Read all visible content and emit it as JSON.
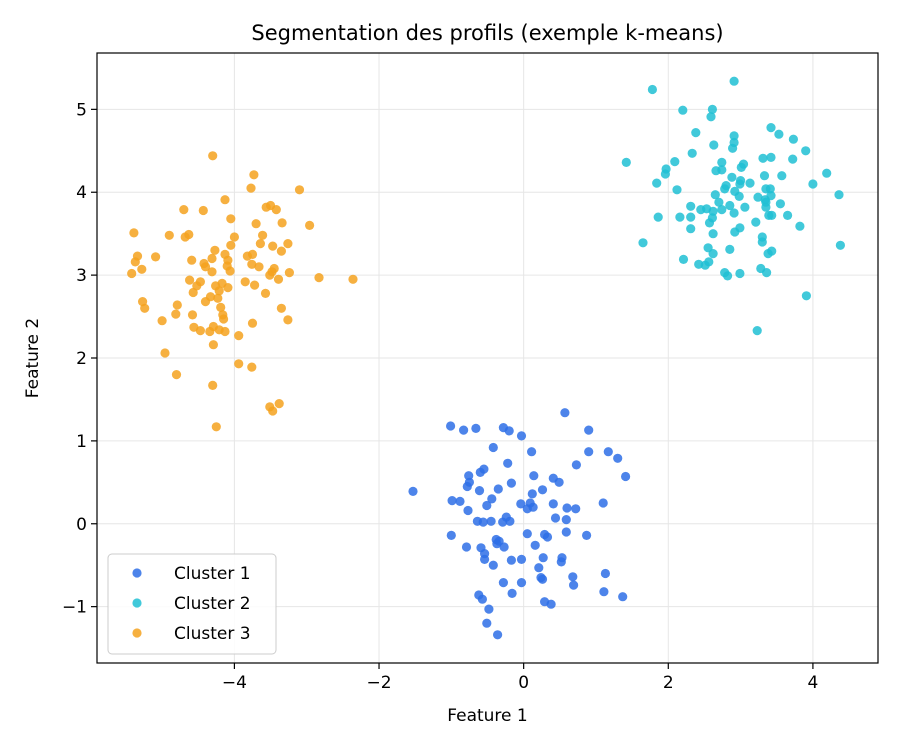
{
  "chart_data": {
    "type": "scatter",
    "title": "Segmentation des profils (exemple k-means)",
    "xlabel": "Feature 1",
    "ylabel": "Feature 2",
    "xlim": [
      -5.9,
      4.9
    ],
    "ylim": [
      -1.68,
      5.68
    ],
    "xticks": [
      {
        "value": -4,
        "label": "−4"
      },
      {
        "value": -2,
        "label": "−2"
      },
      {
        "value": 0,
        "label": "0"
      },
      {
        "value": 2,
        "label": "2"
      },
      {
        "value": 4,
        "label": "4"
      }
    ],
    "yticks": [
      {
        "value": -1,
        "label": "−1"
      },
      {
        "value": 0,
        "label": "0"
      },
      {
        "value": 1,
        "label": "1"
      },
      {
        "value": 2,
        "label": "2"
      },
      {
        "value": 3,
        "label": "3"
      },
      {
        "value": 4,
        "label": "4"
      },
      {
        "value": 5,
        "label": "5"
      }
    ],
    "grid": true,
    "legend_position": "lower-left",
    "series": [
      {
        "name": "Cluster 1",
        "color": "#2e6fe6",
        "points": [
          [
            0.57,
            1.34
          ],
          [
            -1.01,
            1.18
          ],
          [
            -0.66,
            1.15
          ],
          [
            -0.28,
            1.16
          ],
          [
            -0.2,
            1.12
          ],
          [
            0.9,
            1.13
          ],
          [
            -0.83,
            1.13
          ],
          [
            -0.03,
            1.06
          ],
          [
            -0.42,
            0.92
          ],
          [
            0.11,
            0.87
          ],
          [
            0.9,
            0.87
          ],
          [
            1.17,
            0.87
          ],
          [
            1.3,
            0.79
          ],
          [
            0.73,
            0.71
          ],
          [
            -0.22,
            0.73
          ],
          [
            -0.55,
            0.66
          ],
          [
            -0.6,
            0.62
          ],
          [
            0.14,
            0.58
          ],
          [
            1.41,
            0.57
          ],
          [
            -0.76,
            0.58
          ],
          [
            -0.75,
            0.5
          ],
          [
            0.41,
            0.55
          ],
          [
            -0.78,
            0.45
          ],
          [
            0.49,
            0.5
          ],
          [
            -0.35,
            0.42
          ],
          [
            -0.61,
            0.4
          ],
          [
            0.26,
            0.41
          ],
          [
            -0.17,
            0.49
          ],
          [
            -1.53,
            0.39
          ],
          [
            0.12,
            0.36
          ],
          [
            -0.44,
            0.3
          ],
          [
            -0.51,
            0.22
          ],
          [
            -0.99,
            0.28
          ],
          [
            -0.88,
            0.27
          ],
          [
            0.09,
            0.25
          ],
          [
            -0.04,
            0.24
          ],
          [
            1.1,
            0.25
          ],
          [
            0.41,
            0.24
          ],
          [
            0.13,
            0.2
          ],
          [
            0.6,
            0.19
          ],
          [
            0.72,
            0.18
          ],
          [
            0.05,
            0.18
          ],
          [
            -0.77,
            0.16
          ],
          [
            -0.24,
            0.08
          ],
          [
            -0.29,
            0.02
          ],
          [
            0.44,
            0.07
          ],
          [
            0.59,
            0.05
          ],
          [
            -0.45,
            0.03
          ],
          [
            -0.64,
            0.03
          ],
          [
            -0.56,
            0.02
          ],
          [
            -0.19,
            0.03
          ],
          [
            0.87,
            -0.14
          ],
          [
            0.05,
            -0.12
          ],
          [
            0.29,
            -0.13
          ],
          [
            0.59,
            -0.1
          ],
          [
            0.33,
            -0.16
          ],
          [
            -1.0,
            -0.14
          ],
          [
            -0.38,
            -0.19
          ],
          [
            -0.37,
            -0.24
          ],
          [
            -0.34,
            -0.21
          ],
          [
            0.16,
            -0.26
          ],
          [
            -0.27,
            -0.28
          ],
          [
            -0.79,
            -0.28
          ],
          [
            -0.59,
            -0.29
          ],
          [
            -0.54,
            -0.36
          ],
          [
            0.27,
            -0.41
          ],
          [
            -0.03,
            -0.43
          ],
          [
            0.53,
            -0.41
          ],
          [
            -0.54,
            -0.43
          ],
          [
            -0.17,
            -0.44
          ],
          [
            0.52,
            -0.46
          ],
          [
            -0.42,
            -0.5
          ],
          [
            0.21,
            -0.53
          ],
          [
            1.13,
            -0.6
          ],
          [
            0.24,
            -0.65
          ],
          [
            0.68,
            -0.64
          ],
          [
            0.26,
            -0.67
          ],
          [
            -0.28,
            -0.71
          ],
          [
            -0.03,
            -0.71
          ],
          [
            1.11,
            -0.82
          ],
          [
            0.69,
            -0.74
          ],
          [
            1.37,
            -0.88
          ],
          [
            -0.62,
            -0.86
          ],
          [
            -0.16,
            -0.84
          ],
          [
            0.29,
            -0.94
          ],
          [
            -0.57,
            -0.91
          ],
          [
            0.38,
            -0.97
          ],
          [
            -0.48,
            -1.03
          ],
          [
            -0.51,
            -1.2
          ],
          [
            -0.36,
            -1.34
          ]
        ]
      },
      {
        "name": "Cluster 2",
        "color": "#20bfd3",
        "points": [
          [
            2.91,
            5.34
          ],
          [
            1.78,
            5.24
          ],
          [
            2.2,
            4.99
          ],
          [
            2.61,
            5.0
          ],
          [
            2.59,
            4.91
          ],
          [
            3.42,
            4.78
          ],
          [
            3.53,
            4.7
          ],
          [
            2.38,
            4.72
          ],
          [
            2.91,
            4.68
          ],
          [
            3.73,
            4.64
          ],
          [
            2.63,
            4.57
          ],
          [
            2.91,
            4.6
          ],
          [
            2.89,
            4.53
          ],
          [
            3.31,
            4.41
          ],
          [
            3.9,
            4.5
          ],
          [
            2.33,
            4.47
          ],
          [
            3.42,
            4.42
          ],
          [
            3.72,
            4.4
          ],
          [
            3.04,
            4.34
          ],
          [
            1.42,
            4.36
          ],
          [
            2.09,
            4.37
          ],
          [
            2.74,
            4.36
          ],
          [
            3.01,
            4.3
          ],
          [
            1.97,
            4.28
          ],
          [
            2.74,
            4.27
          ],
          [
            2.66,
            4.26
          ],
          [
            3.33,
            4.2
          ],
          [
            3.57,
            4.2
          ],
          [
            4.19,
            4.23
          ],
          [
            2.88,
            4.18
          ],
          [
            3.0,
            4.14
          ],
          [
            1.96,
            4.22
          ],
          [
            2.99,
            4.1
          ],
          [
            3.41,
            4.04
          ],
          [
            1.84,
            4.11
          ],
          [
            2.8,
            4.08
          ],
          [
            2.78,
            4.04
          ],
          [
            3.13,
            4.11
          ],
          [
            4.0,
            4.1
          ],
          [
            2.92,
            4.01
          ],
          [
            2.12,
            4.03
          ],
          [
            3.35,
            4.04
          ],
          [
            2.65,
            3.97
          ],
          [
            3.24,
            3.94
          ],
          [
            4.36,
            3.97
          ],
          [
            2.98,
            3.95
          ],
          [
            3.42,
            3.96
          ],
          [
            3.34,
            3.91
          ],
          [
            3.35,
            3.88
          ],
          [
            2.7,
            3.88
          ],
          [
            3.55,
            3.86
          ],
          [
            2.31,
            3.83
          ],
          [
            3.35,
            3.82
          ],
          [
            2.53,
            3.8
          ],
          [
            2.85,
            3.84
          ],
          [
            3.06,
            3.82
          ],
          [
            2.74,
            3.79
          ],
          [
            2.45,
            3.79
          ],
          [
            2.62,
            3.77
          ],
          [
            2.91,
            3.75
          ],
          [
            3.39,
            3.72
          ],
          [
            1.86,
            3.7
          ],
          [
            2.16,
            3.7
          ],
          [
            3.65,
            3.72
          ],
          [
            2.31,
            3.7
          ],
          [
            3.43,
            3.72
          ],
          [
            2.61,
            3.69
          ],
          [
            2.57,
            3.63
          ],
          [
            3.21,
            3.64
          ],
          [
            3.82,
            3.59
          ],
          [
            2.31,
            3.56
          ],
          [
            2.99,
            3.57
          ],
          [
            2.92,
            3.52
          ],
          [
            2.62,
            3.5
          ],
          [
            3.3,
            3.46
          ],
          [
            3.3,
            3.4
          ],
          [
            1.65,
            3.39
          ],
          [
            2.55,
            3.33
          ],
          [
            2.85,
            3.31
          ],
          [
            3.43,
            3.29
          ],
          [
            3.38,
            3.26
          ],
          [
            2.62,
            3.26
          ],
          [
            2.21,
            3.19
          ],
          [
            2.56,
            3.16
          ],
          [
            2.42,
            3.13
          ],
          [
            2.51,
            3.12
          ],
          [
            3.28,
            3.08
          ],
          [
            3.36,
            3.03
          ],
          [
            2.78,
            3.03
          ],
          [
            2.99,
            3.02
          ],
          [
            2.82,
            2.99
          ],
          [
            3.91,
            2.75
          ],
          [
            3.23,
            2.33
          ],
          [
            4.38,
            3.36
          ]
        ]
      },
      {
        "name": "Cluster 3",
        "color": "#f5a21f",
        "points": [
          [
            -4.3,
            4.44
          ],
          [
            -3.73,
            4.21
          ],
          [
            -3.77,
            4.05
          ],
          [
            -3.1,
            4.03
          ],
          [
            -4.13,
            3.91
          ],
          [
            -3.5,
            3.84
          ],
          [
            -3.42,
            3.79
          ],
          [
            -3.56,
            3.82
          ],
          [
            -4.43,
            3.78
          ],
          [
            -4.7,
            3.79
          ],
          [
            -4.05,
            3.68
          ],
          [
            -3.34,
            3.63
          ],
          [
            -2.96,
            3.6
          ],
          [
            -3.7,
            3.62
          ],
          [
            -4.0,
            3.46
          ],
          [
            -4.9,
            3.48
          ],
          [
            -4.63,
            3.49
          ],
          [
            -4.68,
            3.46
          ],
          [
            -5.39,
            3.51
          ],
          [
            -3.61,
            3.48
          ],
          [
            -4.05,
            3.36
          ],
          [
            -3.47,
            3.35
          ],
          [
            -4.27,
            3.3
          ],
          [
            -3.64,
            3.38
          ],
          [
            -3.26,
            3.38
          ],
          [
            -3.35,
            3.29
          ],
          [
            -3.75,
            3.25
          ],
          [
            -4.13,
            3.25
          ],
          [
            -3.82,
            3.23
          ],
          [
            -4.31,
            3.2
          ],
          [
            -4.09,
            3.18
          ],
          [
            -4.42,
            3.14
          ],
          [
            -4.4,
            3.1
          ],
          [
            -5.34,
            3.23
          ],
          [
            -5.09,
            3.22
          ],
          [
            -4.59,
            3.18
          ],
          [
            -3.76,
            3.13
          ],
          [
            -3.66,
            3.1
          ],
          [
            -5.37,
            3.16
          ],
          [
            -3.45,
            3.08
          ],
          [
            -4.1,
            3.11
          ],
          [
            -3.48,
            3.04
          ],
          [
            -4.06,
            3.05
          ],
          [
            -3.51,
            3.0
          ],
          [
            -3.24,
            3.03
          ],
          [
            -4.31,
            3.04
          ],
          [
            -5.42,
            3.02
          ],
          [
            -5.28,
            3.07
          ],
          [
            -2.83,
            2.97
          ],
          [
            -2.36,
            2.95
          ],
          [
            -3.39,
            2.95
          ],
          [
            -4.62,
            2.94
          ],
          [
            -4.47,
            2.92
          ],
          [
            -4.17,
            2.9
          ],
          [
            -4.09,
            2.85
          ],
          [
            -3.85,
            2.92
          ],
          [
            -3.72,
            2.88
          ],
          [
            -4.21,
            2.81
          ],
          [
            -4.52,
            2.87
          ],
          [
            -4.26,
            2.87
          ],
          [
            -4.57,
            2.79
          ],
          [
            -3.57,
            2.78
          ],
          [
            -4.23,
            2.72
          ],
          [
            -4.33,
            2.74
          ],
          [
            -4.4,
            2.68
          ],
          [
            -4.79,
            2.64
          ],
          [
            -4.19,
            2.61
          ],
          [
            -5.24,
            2.6
          ],
          [
            -3.35,
            2.6
          ],
          [
            -4.16,
            2.52
          ],
          [
            -4.58,
            2.52
          ],
          [
            -4.81,
            2.53
          ],
          [
            -4.15,
            2.47
          ],
          [
            -3.26,
            2.46
          ],
          [
            -5.0,
            2.45
          ],
          [
            -3.75,
            2.42
          ],
          [
            -4.29,
            2.38
          ],
          [
            -4.21,
            2.34
          ],
          [
            -4.34,
            2.32
          ],
          [
            -4.47,
            2.33
          ],
          [
            -4.13,
            2.32
          ],
          [
            -4.56,
            2.37
          ],
          [
            -3.94,
            2.27
          ],
          [
            -4.29,
            2.16
          ],
          [
            -4.96,
            2.06
          ],
          [
            -3.94,
            1.93
          ],
          [
            -3.76,
            1.89
          ],
          [
            -4.8,
            1.8
          ],
          [
            -4.3,
            1.67
          ],
          [
            -3.38,
            1.45
          ],
          [
            -3.51,
            1.41
          ],
          [
            -3.47,
            1.36
          ],
          [
            -4.25,
            1.17
          ],
          [
            -5.27,
            2.68
          ]
        ]
      }
    ]
  }
}
